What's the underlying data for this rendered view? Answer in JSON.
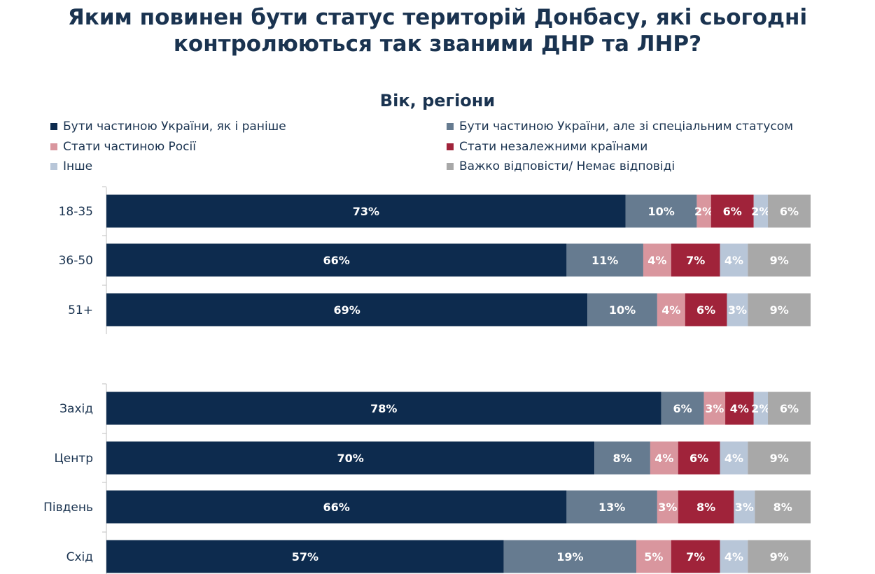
{
  "title_line1": "Яким повинен бути статус територій Донбасу, які сьогодні",
  "title_line2": "контролюються так званими ДНР та ЛНР?",
  "chart_data": {
    "type": "bar",
    "orientation": "horizontal",
    "stacked": true,
    "title": "Яким повинен бути статус територій Донбасу, які сьогодні контролюються так званими ДНР та ЛНР?",
    "subtitle": "Вік, регіони",
    "xlim": [
      0,
      100
    ],
    "grid": false,
    "legend_position": "top",
    "categories": [
      "18-35",
      "36-50",
      "51+",
      "Захід",
      "Центр",
      "Південь",
      "Схід"
    ],
    "series": [
      {
        "name": "Бути частиною України, як і раніше",
        "color": "#0d2b4e",
        "values": [
          73,
          66,
          69,
          78,
          70,
          66,
          57
        ]
      },
      {
        "name": "Бути частиною України, але зі спеціальним статусом",
        "color": "#667b90",
        "values": [
          10,
          11,
          10,
          6,
          8,
          13,
          19
        ]
      },
      {
        "name": "Стати частиною Росії",
        "color": "#d9969e",
        "values": [
          2,
          4,
          4,
          3,
          4,
          3,
          5
        ]
      },
      {
        "name": "Стати незалежними країнами",
        "color": "#a0233a",
        "values": [
          6,
          7,
          6,
          4,
          6,
          8,
          7
        ]
      },
      {
        "name": "Інше",
        "color": "#b8c6d8",
        "values": [
          2,
          4,
          3,
          2,
          4,
          3,
          4
        ]
      },
      {
        "name": "Важко відповісти/ Немає відповіді",
        "color": "#a8a8a8",
        "values": [
          6,
          9,
          9,
          6,
          9,
          8,
          9
        ]
      }
    ]
  }
}
